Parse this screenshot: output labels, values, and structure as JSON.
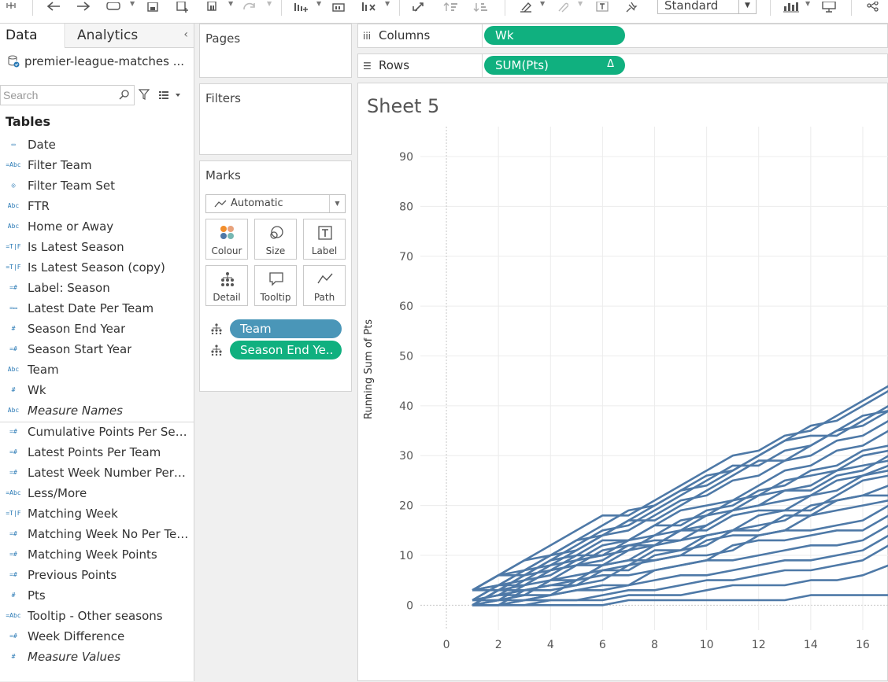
{
  "toolbar": {
    "icons": [
      "tableau-logo-icon",
      "undo-icon",
      "redo-icon",
      "datasource-icon",
      "save-icon",
      "new-sheet-icon",
      "new-dashboard-icon",
      "refresh-icon",
      "swap-icon",
      "clear-icon",
      "duplicate-icon",
      "pause-icon",
      "sort-asc-icon",
      "sort-desc-icon",
      "highlight-icon",
      "attachment-icon",
      "label-toggle-icon",
      "pin-icon",
      "show-me-icon",
      "presentation-icon",
      "share-icon"
    ],
    "fit_select": "Standard"
  },
  "data_pane": {
    "tab_data": "Data",
    "tab_analytics": "Analytics",
    "collapse": "‹",
    "datasource": "premier-league-matches ...",
    "search_placeholder": "Search",
    "tables_header": "Tables",
    "dimensions": [
      {
        "icon": "calendar",
        "icon_text": "▭",
        "name": "Date",
        "italic": false
      },
      {
        "icon": "calc-abc",
        "icon_text": "=Abc",
        "name": "Filter Team",
        "italic": false
      },
      {
        "icon": "set",
        "icon_text": "◎",
        "name": "Filter Team Set",
        "italic": false
      },
      {
        "icon": "abc",
        "icon_text": "Abc",
        "name": "FTR",
        "italic": false
      },
      {
        "icon": "abc",
        "icon_text": "Abc",
        "name": "Home or Away",
        "italic": false
      },
      {
        "icon": "calc-tf",
        "icon_text": "=T|F",
        "name": "Is Latest Season",
        "italic": false
      },
      {
        "icon": "calc-tf",
        "icon_text": "=T|F",
        "name": "Is Latest Season (copy)",
        "italic": false
      },
      {
        "icon": "calc-num",
        "icon_text": "=#",
        "name": "Label: Season",
        "italic": false
      },
      {
        "icon": "calc-date",
        "icon_text": "=▭",
        "name": "Latest Date Per Team",
        "italic": false
      },
      {
        "icon": "num",
        "icon_text": "#",
        "name": "Season End Year",
        "italic": false
      },
      {
        "icon": "calc-num",
        "icon_text": "=#",
        "name": "Season Start Year",
        "italic": false
      },
      {
        "icon": "abc",
        "icon_text": "Abc",
        "name": "Team",
        "italic": false
      },
      {
        "icon": "num",
        "icon_text": "#",
        "name": "Wk",
        "italic": false
      },
      {
        "icon": "abc",
        "icon_text": "Abc",
        "name": "Measure Names",
        "italic": true
      }
    ],
    "measures": [
      {
        "icon": "calc-num",
        "icon_text": "=#",
        "name": "Cumulative Points Per Seas...",
        "italic": false
      },
      {
        "icon": "calc-num",
        "icon_text": "=#",
        "name": "Latest Points Per Team",
        "italic": false
      },
      {
        "icon": "calc-num",
        "icon_text": "=#",
        "name": "Latest Week Number Per T...",
        "italic": false
      },
      {
        "icon": "calc-abc",
        "icon_text": "=Abc",
        "name": "Less/More",
        "italic": false
      },
      {
        "icon": "calc-tf",
        "icon_text": "=T|F",
        "name": "Matching Week",
        "italic": false
      },
      {
        "icon": "calc-num",
        "icon_text": "=#",
        "name": "Matching Week No Per Tea...",
        "italic": false
      },
      {
        "icon": "calc-num",
        "icon_text": "=#",
        "name": "Matching Week Points",
        "italic": false
      },
      {
        "icon": "calc-num",
        "icon_text": "=#",
        "name": "Previous Points",
        "italic": false
      },
      {
        "icon": "num",
        "icon_text": "#",
        "name": "Pts",
        "italic": false
      },
      {
        "icon": "calc-abc",
        "icon_text": "=Abc",
        "name": "Tooltip - Other seasons",
        "italic": false
      },
      {
        "icon": "calc-num",
        "icon_text": "=#",
        "name": "Week Difference",
        "italic": false
      },
      {
        "icon": "num",
        "icon_text": "#",
        "name": "Measure Values",
        "italic": true
      }
    ]
  },
  "pages_card": {
    "title": "Pages"
  },
  "filters_card": {
    "title": "Filters"
  },
  "marks_card": {
    "title": "Marks",
    "mark_type": "Automatic",
    "buttons": [
      {
        "label": "Colour",
        "icon": "colour-icon"
      },
      {
        "label": "Size",
        "icon": "size-icon"
      },
      {
        "label": "Label",
        "icon": "label-icon"
      },
      {
        "label": "Detail",
        "icon": "detail-icon"
      },
      {
        "label": "Tooltip",
        "icon": "tooltip-icon"
      },
      {
        "label": "Path",
        "icon": "path-icon"
      }
    ],
    "pills": [
      {
        "label": "Team",
        "color": "#4a96b8"
      },
      {
        "label": "Season End Ye..",
        "color": "#10b07f"
      }
    ]
  },
  "columns_shelf": {
    "label": "Columns",
    "icon": "iii",
    "pill": "Wk",
    "pill_color": "#10b07f"
  },
  "rows_shelf": {
    "label": "Rows",
    "icon": "☰",
    "pill": "SUM(Pts)",
    "pill_delta": "Δ",
    "pill_color": "#10b07f"
  },
  "sheet": {
    "title": "Sheet 5"
  },
  "chart_data": {
    "type": "line",
    "title": "",
    "xlabel": "",
    "ylabel": "Running Sum of Pts",
    "x_ticks": [
      "0",
      "2",
      "4",
      "6",
      "8",
      "10",
      "12",
      "14",
      "16"
    ],
    "y_ticks": [
      "0",
      "10",
      "20",
      "30",
      "40",
      "50",
      "60",
      "70",
      "80",
      "90"
    ],
    "xlim": [
      -1,
      17
    ],
    "ylim": [
      -5,
      96
    ],
    "grid": true,
    "line_color": "#4e79a7",
    "note_series": "many overlapping season-team running totals; representative sample shown",
    "series": [
      {
        "x": [
          1,
          2,
          3,
          4,
          5,
          6,
          7,
          8,
          9,
          10,
          11,
          12,
          13,
          14,
          15,
          16,
          17
        ],
        "y": [
          3,
          6,
          9,
          12,
          15,
          18,
          18,
          21,
          24,
          27,
          30,
          31,
          34,
          35,
          38,
          41,
          44
        ]
      },
      {
        "x": [
          1,
          2,
          3,
          4,
          5,
          6,
          7,
          8,
          9,
          10,
          11,
          12,
          13,
          14,
          15,
          16,
          17
        ],
        "y": [
          3,
          4,
          7,
          10,
          13,
          14,
          17,
          20,
          23,
          24,
          27,
          30,
          33,
          34,
          34,
          37,
          40
        ]
      },
      {
        "x": [
          1,
          2,
          3,
          4,
          5,
          6,
          7,
          8,
          9,
          10,
          11,
          12,
          13,
          14,
          15,
          16,
          17
        ],
        "y": [
          3,
          6,
          7,
          10,
          11,
          14,
          17,
          17,
          20,
          23,
          26,
          29,
          29,
          32,
          35,
          38,
          39
        ]
      },
      {
        "x": [
          1,
          2,
          3,
          4,
          5,
          6,
          7,
          8,
          9,
          10,
          11,
          12,
          13,
          14,
          15,
          16,
          17
        ],
        "y": [
          1,
          4,
          7,
          8,
          11,
          14,
          15,
          18,
          21,
          22,
          25,
          26,
          29,
          30,
          33,
          34,
          37
        ]
      },
      {
        "x": [
          1,
          2,
          3,
          4,
          5,
          6,
          7,
          8,
          9,
          10,
          11,
          12,
          13,
          14,
          15,
          16,
          17
        ],
        "y": [
          3,
          3,
          6,
          9,
          10,
          13,
          13,
          16,
          19,
          20,
          21,
          24,
          27,
          28,
          31,
          32,
          35
        ]
      },
      {
        "x": [
          1,
          2,
          3,
          4,
          5,
          6,
          7,
          8,
          9,
          10,
          11,
          12,
          13,
          14,
          15,
          16,
          17
        ],
        "y": [
          0,
          3,
          4,
          7,
          10,
          10,
          13,
          14,
          17,
          18,
          21,
          22,
          25,
          26,
          27,
          30,
          31
        ]
      },
      {
        "x": [
          1,
          2,
          3,
          4,
          5,
          6,
          7,
          8,
          9,
          10,
          11,
          12,
          13,
          14,
          15,
          16,
          17
        ],
        "y": [
          1,
          2,
          5,
          6,
          9,
          10,
          11,
          14,
          15,
          18,
          19,
          22,
          23,
          24,
          27,
          28,
          29
        ]
      },
      {
        "x": [
          1,
          2,
          3,
          4,
          5,
          6,
          7,
          8,
          9,
          10,
          11,
          12,
          13,
          14,
          15,
          16,
          17
        ],
        "y": [
          3,
          4,
          4,
          7,
          8,
          9,
          12,
          13,
          13,
          16,
          19,
          20,
          21,
          22,
          25,
          26,
          27
        ]
      },
      {
        "x": [
          1,
          2,
          3,
          4,
          5,
          6,
          7,
          8,
          9,
          10,
          11,
          12,
          13,
          14,
          15,
          16,
          17
        ],
        "y": [
          0,
          1,
          4,
          5,
          5,
          8,
          9,
          12,
          13,
          14,
          15,
          18,
          19,
          19,
          22,
          25,
          26
        ]
      },
      {
        "x": [
          1,
          2,
          3,
          4,
          5,
          6,
          7,
          8,
          9,
          10,
          11,
          12,
          13,
          14,
          15,
          16,
          17
        ],
        "y": [
          1,
          1,
          2,
          5,
          6,
          7,
          7,
          10,
          11,
          12,
          15,
          16,
          17,
          20,
          21,
          22,
          24
        ]
      },
      {
        "x": [
          1,
          2,
          3,
          4,
          5,
          6,
          7,
          8,
          9,
          10,
          11,
          12,
          13,
          14,
          15,
          16,
          17
        ],
        "y": [
          0,
          3,
          3,
          4,
          5,
          8,
          9,
          9,
          10,
          13,
          14,
          14,
          15,
          18,
          19,
          20,
          21
        ]
      },
      {
        "x": [
          1,
          2,
          3,
          4,
          5,
          6,
          7,
          8,
          9,
          10,
          11,
          12,
          13,
          14,
          15,
          16,
          17
        ],
        "y": [
          1,
          2,
          3,
          3,
          4,
          5,
          8,
          9,
          10,
          10,
          11,
          14,
          15,
          15,
          16,
          17,
          20
        ]
      },
      {
        "x": [
          1,
          2,
          3,
          4,
          5,
          6,
          7,
          8,
          9,
          10,
          11,
          12,
          13,
          14,
          15,
          16,
          17
        ],
        "y": [
          0,
          0,
          1,
          2,
          5,
          6,
          6,
          7,
          8,
          9,
          12,
          13,
          13,
          14,
          15,
          15,
          18
        ]
      },
      {
        "x": [
          1,
          2,
          3,
          4,
          5,
          6,
          7,
          8,
          9,
          10,
          11,
          12,
          13,
          14,
          15,
          16,
          17
        ],
        "y": [
          0,
          1,
          1,
          2,
          3,
          3,
          4,
          7,
          8,
          9,
          9,
          10,
          11,
          12,
          12,
          13,
          16
        ]
      },
      {
        "x": [
          1,
          2,
          3,
          4,
          5,
          6,
          7,
          8,
          9,
          10,
          11,
          12,
          13,
          14,
          15,
          16,
          17
        ],
        "y": [
          1,
          1,
          2,
          2,
          3,
          4,
          4,
          5,
          6,
          6,
          7,
          8,
          9,
          9,
          10,
          11,
          14
        ]
      },
      {
        "x": [
          1,
          2,
          3,
          4,
          5,
          6,
          7,
          8,
          9,
          10,
          11,
          12,
          13,
          14,
          15,
          16,
          17
        ],
        "y": [
          0,
          0,
          1,
          1,
          1,
          2,
          3,
          3,
          4,
          5,
          5,
          6,
          7,
          7,
          8,
          9,
          12
        ]
      },
      {
        "x": [
          1,
          2,
          3,
          4,
          5,
          6,
          7,
          8,
          9,
          10,
          11,
          12,
          13,
          14,
          15,
          16,
          17
        ],
        "y": [
          0,
          0,
          0,
          1,
          1,
          1,
          2,
          2,
          2,
          3,
          4,
          4,
          4,
          5,
          5,
          6,
          8
        ]
      },
      {
        "x": [
          1,
          2,
          3,
          4,
          5,
          6,
          7,
          8,
          9,
          10,
          11,
          12,
          13,
          14,
          15,
          16,
          17
        ],
        "y": [
          0,
          0,
          0,
          0,
          0,
          0,
          1,
          1,
          1,
          1,
          1,
          1,
          1,
          2,
          2,
          2,
          2
        ]
      },
      {
        "x": [
          1,
          2,
          3,
          4,
          5,
          6,
          7,
          8,
          9,
          10,
          11,
          12,
          13,
          14,
          15,
          16,
          17
        ],
        "y": [
          3,
          6,
          9,
          10,
          13,
          16,
          19,
          20,
          23,
          26,
          27,
          30,
          33,
          36,
          37,
          40,
          43
        ]
      },
      {
        "x": [
          1,
          2,
          3,
          4,
          5,
          6,
          7,
          8,
          9,
          10,
          11,
          12,
          13,
          14,
          15,
          16,
          17
        ],
        "y": [
          3,
          6,
          6,
          9,
          12,
          15,
          16,
          19,
          22,
          25,
          28,
          28,
          31,
          32,
          35,
          36,
          39
        ]
      },
      {
        "x": [
          1,
          2,
          3,
          4,
          5,
          6,
          7,
          8,
          9,
          10,
          11,
          12,
          13,
          14,
          15,
          16,
          17
        ],
        "y": [
          1,
          4,
          5,
          8,
          9,
          12,
          13,
          16,
          16,
          19,
          20,
          23,
          24,
          27,
          28,
          31,
          32
        ]
      },
      {
        "x": [
          1,
          2,
          3,
          4,
          5,
          6,
          7,
          8,
          9,
          10,
          11,
          12,
          13,
          14,
          15,
          16,
          17
        ],
        "y": [
          0,
          3,
          6,
          7,
          8,
          11,
          12,
          12,
          15,
          16,
          19,
          20,
          23,
          23,
          26,
          27,
          30
        ]
      },
      {
        "x": [
          1,
          2,
          3,
          4,
          5,
          6,
          7,
          8,
          9,
          10,
          11,
          12,
          13,
          14,
          15,
          16,
          17
        ],
        "y": [
          1,
          2,
          2,
          5,
          8,
          8,
          11,
          12,
          15,
          15,
          18,
          19,
          19,
          22,
          23,
          26,
          28
        ]
      },
      {
        "x": [
          1,
          2,
          3,
          4,
          5,
          6,
          7,
          8,
          9,
          10,
          11,
          12,
          13,
          14,
          15,
          16,
          17
        ],
        "y": [
          0,
          0,
          3,
          4,
          4,
          7,
          8,
          11,
          11,
          14,
          15,
          15,
          18,
          18,
          21,
          22,
          22
        ]
      }
    ]
  }
}
